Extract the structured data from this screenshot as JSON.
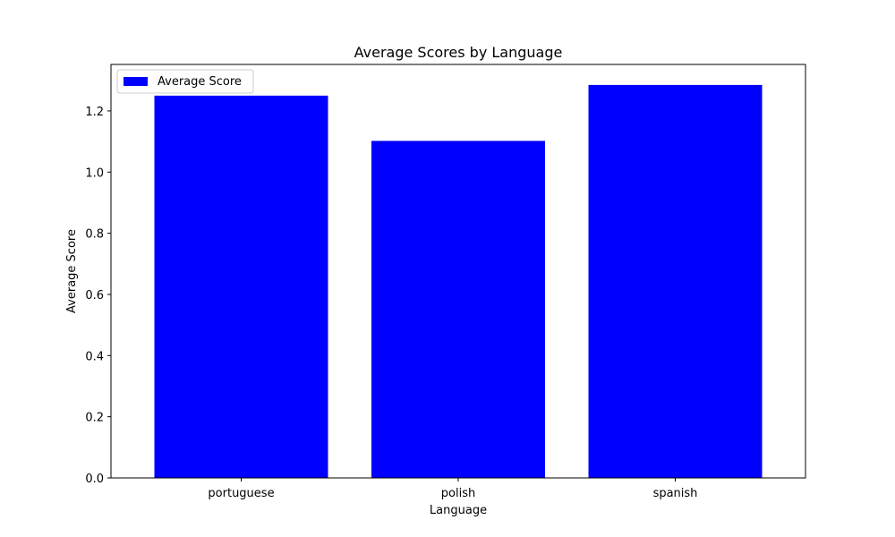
{
  "chart_data": {
    "type": "bar",
    "title": "Average Scores by Language",
    "xlabel": "Language",
    "ylabel": "Average Score",
    "categories": [
      "portuguese",
      "polish",
      "spanish"
    ],
    "series": [
      {
        "name": "Average Score",
        "values": [
          1.25,
          1.102,
          1.285
        ]
      }
    ],
    "ylim": [
      0,
      1.352
    ],
    "yticks": [
      0.0,
      0.2,
      0.4,
      0.6,
      0.8,
      1.0,
      1.2
    ],
    "ytick_labels": [
      "0.0",
      "0.2",
      "0.4",
      "0.6",
      "0.8",
      "1.0",
      "1.2"
    ],
    "legend_position": "top-left",
    "grid": false,
    "bar_color": "#0000ff"
  }
}
